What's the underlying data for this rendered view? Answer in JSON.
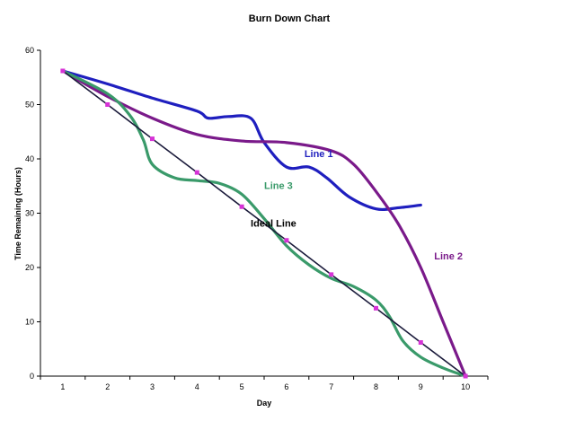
{
  "chart_data": {
    "type": "line",
    "title": "Burn Down Chart",
    "xlabel": "Day",
    "ylabel": "Time Remaining (Hours)",
    "xlim": [
      0.5,
      10.5
    ],
    "ylim": [
      0,
      60
    ],
    "x_ticks": [
      "1",
      "2",
      "3",
      "4",
      "5",
      "6",
      "7",
      "8",
      "9",
      "10"
    ],
    "y_ticks": [
      "0",
      "10",
      "20",
      "30",
      "40",
      "50",
      "60"
    ],
    "grid": false,
    "legend": "none",
    "series": [
      {
        "name": "Ideal Line",
        "color": "#1a1a3a",
        "marker_color": "#d633d6",
        "x": [
          1,
          2,
          3,
          4,
          5,
          6,
          7,
          8,
          9,
          10
        ],
        "y": [
          56.2,
          50,
          43.7,
          37.5,
          31.2,
          25,
          18.7,
          12.5,
          6.2,
          0
        ]
      },
      {
        "name": "Line 1",
        "color": "#1f1fbf",
        "x": [
          1,
          2,
          3,
          4,
          4.25,
          4.7,
          5.2,
          5.5,
          6,
          6.5,
          6.9,
          7.4,
          8,
          8.5,
          9
        ],
        "y": [
          56.2,
          53.8,
          51.2,
          48.8,
          47.5,
          47.8,
          47.5,
          43,
          38.5,
          38.5,
          36.5,
          33,
          30.8,
          31,
          31.5
        ]
      },
      {
        "name": "Line 2",
        "color": "#7a1a8a",
        "x": [
          1,
          2,
          3,
          4,
          5,
          6,
          7,
          7.5,
          8,
          8.5,
          9,
          9.5,
          10
        ],
        "y": [
          56.2,
          51.5,
          47.5,
          44.5,
          43.3,
          43,
          41.5,
          39,
          34,
          28,
          20,
          10,
          0
        ]
      },
      {
        "name": "Line 3",
        "color": "#3a9a6a",
        "x": [
          1,
          2,
          2.5,
          2.8,
          3,
          3.5,
          4,
          4.5,
          5,
          5.5,
          6,
          6.5,
          7,
          7.5,
          8,
          8.3,
          8.6,
          9,
          9.5,
          10
        ],
        "y": [
          56.2,
          52,
          48,
          43.5,
          39,
          36.5,
          36,
          35.5,
          33.5,
          29,
          24,
          20.5,
          18,
          16.5,
          14,
          11,
          6.5,
          3.5,
          1.5,
          0
        ]
      }
    ],
    "annotations": [
      {
        "text": "Ideal Line",
        "x": 5.2,
        "y": 27.5,
        "color": "#000000"
      },
      {
        "text": "Line 1",
        "x": 6.4,
        "y": 40.3,
        "color": "#1f1fbf"
      },
      {
        "text": "Line 2",
        "x": 9.3,
        "y": 21.5,
        "color": "#7a1a8a"
      },
      {
        "text": "Line 3",
        "x": 5.5,
        "y": 34.5,
        "color": "#3a9a6a"
      }
    ]
  }
}
